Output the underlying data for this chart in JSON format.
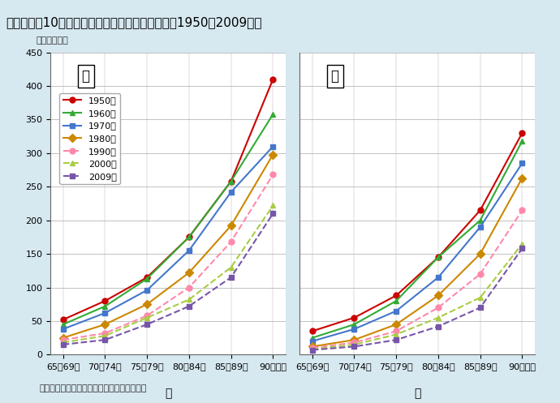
{
  "title": "図１－１－10　高齢者の性・年齢階級別死亡率（1950～2009年）",
  "ylabel": "（人口千対）",
  "xlabel_male": "男",
  "xlabel_female": "女",
  "source": "資料：厚生労働省「人口動態統計」より作成",
  "x_labels": [
    "65～69歳",
    "70～74歳",
    "75～79歳",
    "80～84歳",
    "85～89歳",
    "90歳以上"
  ],
  "ylim": [
    0,
    450
  ],
  "yticks": [
    0,
    50,
    100,
    150,
    200,
    250,
    300,
    350,
    400,
    450
  ],
  "series": [
    {
      "label": "1950年",
      "color": "#cc0000",
      "linestyle": "solid",
      "marker": "o",
      "male": [
        52,
        80,
        115,
        175,
        258,
        410
      ],
      "female": [
        35,
        55,
        88,
        145,
        215,
        330
      ]
    },
    {
      "label": "1960年",
      "color": "#33aa33",
      "linestyle": "solid",
      "marker": "^",
      "male": [
        45,
        72,
        113,
        175,
        258,
        358
      ],
      "female": [
        25,
        45,
        80,
        145,
        200,
        318
      ]
    },
    {
      "label": "1970年",
      "color": "#4477cc",
      "linestyle": "solid",
      "marker": "s",
      "male": [
        38,
        62,
        96,
        155,
        242,
        310
      ],
      "female": [
        20,
        38,
        65,
        115,
        190,
        285
      ]
    },
    {
      "label": "1980年",
      "color": "#cc8800",
      "linestyle": "solid",
      "marker": "D",
      "male": [
        25,
        45,
        75,
        122,
        192,
        298
      ],
      "female": [
        12,
        22,
        45,
        88,
        150,
        263
      ]
    },
    {
      "label": "1990年",
      "color": "#ff88aa",
      "linestyle": "dashed",
      "marker": "o",
      "male": [
        22,
        32,
        58,
        100,
        168,
        268
      ],
      "female": [
        10,
        18,
        35,
        70,
        120,
        215
      ]
    },
    {
      "label": "2000年",
      "color": "#aacc44",
      "linestyle": "dashed",
      "marker": "^",
      "male": [
        18,
        28,
        55,
        82,
        130,
        222
      ],
      "female": [
        8,
        15,
        30,
        55,
        85,
        165
      ]
    },
    {
      "label": "2009年",
      "color": "#7755aa",
      "linestyle": "dashed",
      "marker": "s",
      "male": [
        15,
        22,
        45,
        72,
        115,
        210
      ],
      "female": [
        7,
        12,
        22,
        42,
        70,
        158
      ]
    }
  ],
  "background_color": "#d6e8f0",
  "plot_bg_color": "#ffffff",
  "title_bg_color": "#2a6099",
  "title_text_color": "#ffffff"
}
